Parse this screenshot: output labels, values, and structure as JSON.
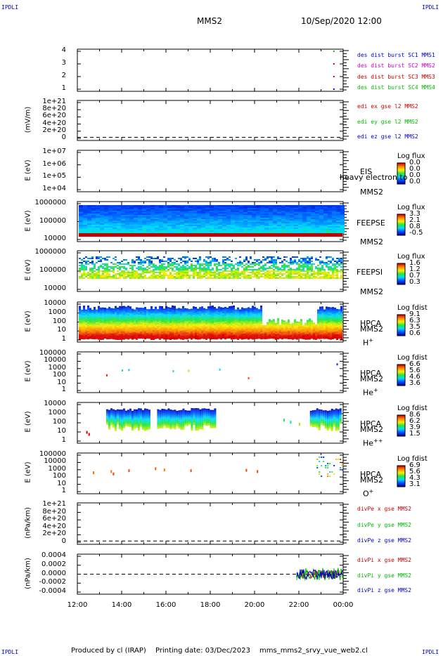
{
  "header": {
    "corner_left_top": "IPDLI",
    "corner_right_top": "IPDLI",
    "corner_left_bottom": "IPDLI",
    "corner_right_bottom": "IPDLI",
    "title": "MMS2",
    "date": "10/Sep/2020 12:00"
  },
  "footer": {
    "produced": "Produced by cl (IRAP)",
    "printing": "Printing date: 03/Dec/2023",
    "file": "mms_mms2_srvy_vue_web2.cl"
  },
  "chart_data": [
    {
      "type": "scatter",
      "name": "burst",
      "yticks": [
        "4",
        "3",
        "2",
        "1"
      ],
      "legend": [
        {
          "label": "des dist burst SC1 MMS1",
          "color": "#0000cc"
        },
        {
          "label": "des dist burst SC2 MMS2",
          "color": "#cc00cc"
        },
        {
          "label": "des dist burst SC3 MMS3",
          "color": "#cc0000"
        },
        {
          "label": "des dist burst SC4 MMS4",
          "color": "#00bb00"
        }
      ]
    },
    {
      "type": "line",
      "ylabel": "(mV/m)",
      "yticks": [
        "1e+21",
        "8e+20",
        "6e+20",
        "4e+20",
        "2e+20",
        "0"
      ],
      "legend": [
        {
          "label": "edi ex gse l2 MMS2",
          "color": "#cc0000"
        },
        {
          "label": "edi ey gse l2 MMS2",
          "color": "#00bb00"
        },
        {
          "label": "edi ez gse l2 MMS2",
          "color": "#0000cc"
        }
      ]
    },
    {
      "type": "heatmap",
      "ylabel": "E (eV)",
      "yticks": [
        "1e+07",
        "1e+06",
        "1e+05",
        "1e+04"
      ],
      "instrument": "EIS",
      "overlay": "heavy electron to",
      "spacecraft": "MMS2",
      "cb_title": "Log flux",
      "cb_values": [
        "0.0",
        "0.0",
        "0.0",
        "0.0"
      ]
    },
    {
      "type": "heatmap",
      "ylabel": "E (eV)",
      "yticks": [
        "1000000",
        "100000",
        "10000"
      ],
      "instrument": "FEEPSE",
      "spacecraft": "MMS2",
      "cb_title": "Log flux",
      "cb_values": [
        "3.3",
        "2.1",
        "0.8",
        "-0.5"
      ]
    },
    {
      "type": "heatmap",
      "ylabel": "E (eV)",
      "yticks": [
        "1000000",
        "100000",
        "10000"
      ],
      "instrument": "FEEPSI",
      "spacecraft": "MMS2",
      "cb_title": "Log flux",
      "cb_values": [
        "1.6",
        "1.2",
        "0.7",
        "0.3"
      ]
    },
    {
      "type": "heatmap",
      "ylabel": "E (eV)",
      "yticks": [
        "10000",
        "1000",
        "100",
        "10",
        "1"
      ],
      "instrument": "HPCA",
      "spacecraft": "MMS2",
      "species": "H",
      "species_sup": "+",
      "cb_title": "Log fdist",
      "cb_values": [
        "9.1",
        "6.3",
        "3.5",
        "0.6"
      ]
    },
    {
      "type": "heatmap",
      "ylabel": "E (eV)",
      "yticks": [
        "100000",
        "10000",
        "1000",
        "100",
        "10",
        "1"
      ],
      "instrument": "HPCA",
      "spacecraft": "MMS2",
      "species": "He",
      "species_sup": "+",
      "cb_title": "Log fdist",
      "cb_values": [
        "6.6",
        "5.6",
        "4.6",
        "3.6"
      ]
    },
    {
      "type": "heatmap",
      "ylabel": "E (eV)",
      "yticks": [
        "10000",
        "1000",
        "100",
        "10",
        "1"
      ],
      "instrument": "HPCA",
      "spacecraft": "MMS2",
      "species": "He",
      "species_sup": "++",
      "cb_title": "Log fdist",
      "cb_values": [
        "8.6",
        "6.2",
        "3.9",
        "1.5"
      ]
    },
    {
      "type": "heatmap",
      "ylabel": "E (eV)",
      "yticks": [
        "100000",
        "10000",
        "1000",
        "100",
        "10",
        "1"
      ],
      "instrument": "HPCA",
      "spacecraft": "MMS2",
      "species": "O",
      "species_sup": "+",
      "cb_title": "Log fdist",
      "cb_values": [
        "6.9",
        "5.6",
        "4.3",
        "3.1"
      ]
    },
    {
      "type": "line",
      "ylabel": "(nPa/km)",
      "yticks": [
        "1e+21",
        "8e+20",
        "6e+20",
        "4e+20",
        "2e+20",
        "0"
      ],
      "legend": [
        {
          "label": "divPe x gse MMS2",
          "color": "#cc0000"
        },
        {
          "label": "divPe y gse MMS2",
          "color": "#00bb00"
        },
        {
          "label": "divPe z gse MMS2",
          "color": "#0000cc"
        }
      ]
    },
    {
      "type": "line",
      "ylabel": "(nPa/km)",
      "yticks": [
        "0.0004",
        "0.0002",
        "0.0000",
        "-0.0002",
        "-0.0004"
      ],
      "legend": [
        {
          "label": "divPi x gse MMS2",
          "color": "#cc0000"
        },
        {
          "label": "divPi y gse MMS2",
          "color": "#00bb00"
        },
        {
          "label": "divPi z gse MMS2",
          "color": "#0000cc"
        }
      ]
    }
  ],
  "xaxis": {
    "ticks": [
      "12:00",
      "14:00",
      "16:00",
      "18:00",
      "20:00",
      "22:00",
      "00:00"
    ]
  }
}
